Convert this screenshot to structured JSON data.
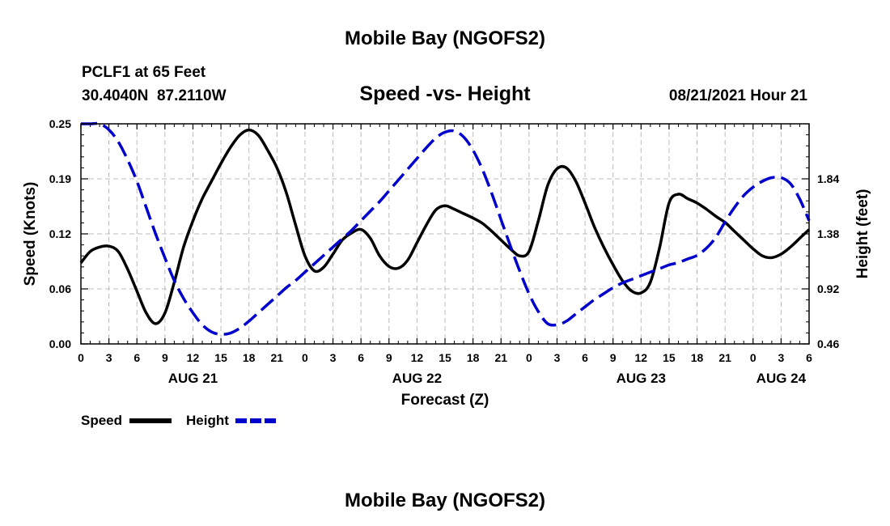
{
  "header": {
    "title": "Mobile Bay (NGOFS2)",
    "station": "PCLF1 at 65 Feet",
    "coords": "30.4040N  87.2110W",
    "subtitle": "Speed -vs- Height",
    "datetime": "08/21/2021 Hour 21"
  },
  "footer": {
    "title": "Mobile Bay (NGOFS2)"
  },
  "chart_data": {
    "type": "line",
    "xlabel": "Forecast (Z)",
    "ylabel_left": "Speed (Knots)",
    "ylabel_right": "Height (feet)",
    "xlim": [
      0,
      78
    ],
    "ylim_left": [
      0,
      0.25
    ],
    "ylim_right": [
      0.46,
      2.3
    ],
    "grid": true,
    "x_tick_values": [
      0,
      3,
      6,
      9,
      12,
      15,
      18,
      21,
      24,
      27,
      30,
      33,
      36,
      39,
      42,
      45,
      48,
      51,
      54,
      57,
      60,
      63,
      66,
      69,
      72,
      75,
      78
    ],
    "x_tick_labels": [
      "0",
      "3",
      "6",
      "9",
      "12",
      "15",
      "18",
      "21",
      "0",
      "3",
      "6",
      "9",
      "12",
      "15",
      "18",
      "21",
      "0",
      "3",
      "6",
      "9",
      "12",
      "15",
      "18",
      "21",
      "0",
      "3",
      "6"
    ],
    "day_labels": [
      {
        "label": "AUG 21",
        "x": 12
      },
      {
        "label": "AUG 22",
        "x": 36
      },
      {
        "label": "AUG 23",
        "x": 60
      },
      {
        "label": "AUG 24",
        "x": 75
      }
    ],
    "left_ticks": [
      {
        "value": 0.0,
        "label": "0.00"
      },
      {
        "value": 0.0625,
        "label": "0.06"
      },
      {
        "value": 0.125,
        "label": "0.12"
      },
      {
        "value": 0.1875,
        "label": "0.19"
      },
      {
        "value": 0.25,
        "label": "0.25"
      }
    ],
    "right_ticks": [
      {
        "value": 0.46,
        "label": "0.46"
      },
      {
        "value": 0.92,
        "label": "0.92"
      },
      {
        "value": 1.38,
        "label": "1.38"
      },
      {
        "value": 1.84,
        "label": "1.84"
      }
    ],
    "legend_position": "bottom-left",
    "series": [
      {
        "name": "Speed",
        "axis": "left",
        "color": "#000000",
        "dash": "solid",
        "points": [
          [
            0,
            0.092
          ],
          [
            1,
            0.105
          ],
          [
            2,
            0.11
          ],
          [
            3,
            0.111
          ],
          [
            4,
            0.105
          ],
          [
            5,
            0.085
          ],
          [
            6,
            0.06
          ],
          [
            7,
            0.035
          ],
          [
            8,
            0.023
          ],
          [
            9,
            0.035
          ],
          [
            10,
            0.07
          ],
          [
            11,
            0.11
          ],
          [
            12,
            0.14
          ],
          [
            13,
            0.165
          ],
          [
            14,
            0.185
          ],
          [
            15,
            0.205
          ],
          [
            16,
            0.223
          ],
          [
            17,
            0.237
          ],
          [
            18,
            0.243
          ],
          [
            19,
            0.237
          ],
          [
            20,
            0.22
          ],
          [
            21,
            0.2
          ],
          [
            22,
            0.172
          ],
          [
            23,
            0.135
          ],
          [
            24,
            0.1
          ],
          [
            25,
            0.083
          ],
          [
            26,
            0.087
          ],
          [
            27,
            0.102
          ],
          [
            28,
            0.118
          ],
          [
            29,
            0.126
          ],
          [
            30,
            0.13
          ],
          [
            31,
            0.12
          ],
          [
            32,
            0.1
          ],
          [
            33,
            0.088
          ],
          [
            34,
            0.086
          ],
          [
            35,
            0.095
          ],
          [
            36,
            0.115
          ],
          [
            37,
            0.135
          ],
          [
            38,
            0.152
          ],
          [
            39,
            0.157
          ],
          [
            40,
            0.153
          ],
          [
            41,
            0.148
          ],
          [
            42,
            0.143
          ],
          [
            43,
            0.137
          ],
          [
            44,
            0.128
          ],
          [
            45,
            0.118
          ],
          [
            46,
            0.108
          ],
          [
            47,
            0.1
          ],
          [
            48,
            0.105
          ],
          [
            49,
            0.14
          ],
          [
            50,
            0.18
          ],
          [
            51,
            0.199
          ],
          [
            52,
            0.2
          ],
          [
            53,
            0.185
          ],
          [
            54,
            0.16
          ],
          [
            55,
            0.133
          ],
          [
            56,
            0.11
          ],
          [
            57,
            0.09
          ],
          [
            58,
            0.072
          ],
          [
            59,
            0.06
          ],
          [
            60,
            0.058
          ],
          [
            61,
            0.07
          ],
          [
            62,
            0.11
          ],
          [
            63,
            0.16
          ],
          [
            64,
            0.17
          ],
          [
            65,
            0.165
          ],
          [
            66,
            0.16
          ],
          [
            67,
            0.153
          ],
          [
            68,
            0.145
          ],
          [
            69,
            0.138
          ],
          [
            70,
            0.128
          ],
          [
            71,
            0.118
          ],
          [
            72,
            0.108
          ],
          [
            73,
            0.1
          ],
          [
            74,
            0.098
          ],
          [
            75,
            0.102
          ],
          [
            76,
            0.11
          ],
          [
            77,
            0.12
          ],
          [
            78,
            0.13
          ]
        ]
      },
      {
        "name": "Height",
        "axis": "right",
        "color": "#0000cc",
        "dash": "dashed",
        "points": [
          [
            0,
            2.31
          ],
          [
            1,
            2.31
          ],
          [
            2,
            2.3
          ],
          [
            3,
            2.25
          ],
          [
            4,
            2.15
          ],
          [
            5,
            2.0
          ],
          [
            6,
            1.82
          ],
          [
            7,
            1.6
          ],
          [
            8,
            1.38
          ],
          [
            9,
            1.18
          ],
          [
            10,
            0.99
          ],
          [
            11,
            0.84
          ],
          [
            12,
            0.72
          ],
          [
            13,
            0.62
          ],
          [
            14,
            0.56
          ],
          [
            15,
            0.54
          ],
          [
            16,
            0.55
          ],
          [
            17,
            0.59
          ],
          [
            18,
            0.65
          ],
          [
            19,
            0.72
          ],
          [
            20,
            0.79
          ],
          [
            21,
            0.86
          ],
          [
            22,
            0.93
          ],
          [
            23,
            0.99
          ],
          [
            24,
            1.06
          ],
          [
            25,
            1.13
          ],
          [
            26,
            1.2
          ],
          [
            27,
            1.27
          ],
          [
            28,
            1.34
          ],
          [
            29,
            1.41
          ],
          [
            30,
            1.49
          ],
          [
            31,
            1.57
          ],
          [
            32,
            1.65
          ],
          [
            33,
            1.74
          ],
          [
            34,
            1.83
          ],
          [
            35,
            1.92
          ],
          [
            36,
            2.01
          ],
          [
            37,
            2.1
          ],
          [
            38,
            2.18
          ],
          [
            39,
            2.23
          ],
          [
            40,
            2.24
          ],
          [
            41,
            2.19
          ],
          [
            42,
            2.08
          ],
          [
            43,
            1.92
          ],
          [
            44,
            1.72
          ],
          [
            45,
            1.5
          ],
          [
            46,
            1.28
          ],
          [
            47,
            1.07
          ],
          [
            48,
            0.88
          ],
          [
            49,
            0.73
          ],
          [
            50,
            0.63
          ],
          [
            51,
            0.62
          ],
          [
            52,
            0.65
          ],
          [
            53,
            0.71
          ],
          [
            54,
            0.77
          ],
          [
            55,
            0.83
          ],
          [
            56,
            0.88
          ],
          [
            57,
            0.93
          ],
          [
            58,
            0.97
          ],
          [
            59,
            1.0
          ],
          [
            60,
            1.03
          ],
          [
            61,
            1.06
          ],
          [
            62,
            1.09
          ],
          [
            63,
            1.12
          ],
          [
            64,
            1.14
          ],
          [
            65,
            1.17
          ],
          [
            66,
            1.2
          ],
          [
            67,
            1.26
          ],
          [
            68,
            1.35
          ],
          [
            69,
            1.48
          ],
          [
            70,
            1.6
          ],
          [
            71,
            1.7
          ],
          [
            72,
            1.77
          ],
          [
            73,
            1.82
          ],
          [
            74,
            1.85
          ],
          [
            75,
            1.85
          ],
          [
            76,
            1.8
          ],
          [
            77,
            1.67
          ],
          [
            78,
            1.49
          ]
        ]
      }
    ]
  }
}
